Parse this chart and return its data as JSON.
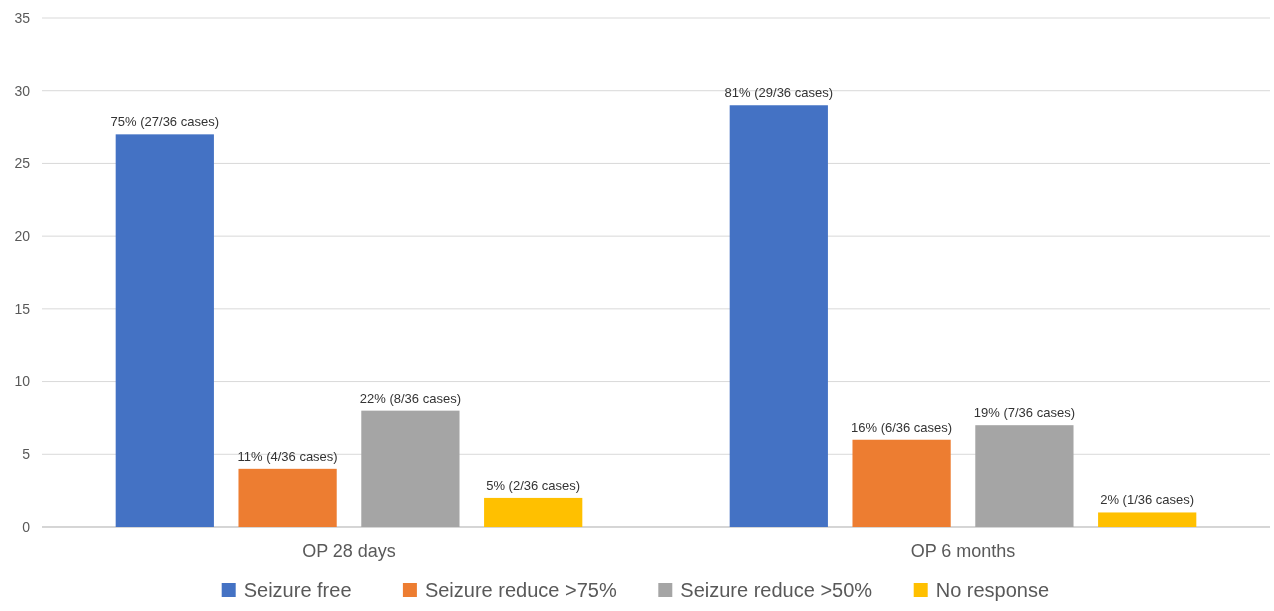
{
  "chart_data": {
    "type": "bar",
    "categories": [
      "OP 28 days",
      "OP 6 months"
    ],
    "series": [
      {
        "name": "Seizure free",
        "color": "#4472c4",
        "values": [
          27,
          29
        ],
        "value_labels": [
          "75% (27/36 cases)",
          "81% (29/36 cases)"
        ]
      },
      {
        "name": "Seizure reduce >75%",
        "color": "#ed7d31",
        "values": [
          4,
          6
        ],
        "value_labels": [
          "11% (4/36 cases)",
          "16% (6/36 cases)"
        ]
      },
      {
        "name": "Seizure reduce >50%",
        "color": "#a5a5a5",
        "values": [
          8,
          7
        ],
        "value_labels": [
          "22% (8/36 cases)",
          "19% (7/36 cases)"
        ]
      },
      {
        "name": "No response",
        "color": "#ffc000",
        "values": [
          2,
          1
        ],
        "value_labels": [
          "5% (2/36 cases)",
          "2% (1/36 cases)"
        ]
      }
    ],
    "ylim": [
      0,
      35
    ],
    "yticks": [
      0,
      5,
      10,
      15,
      20,
      25,
      30,
      35
    ],
    "grid": "y",
    "legend": "bottom"
  }
}
